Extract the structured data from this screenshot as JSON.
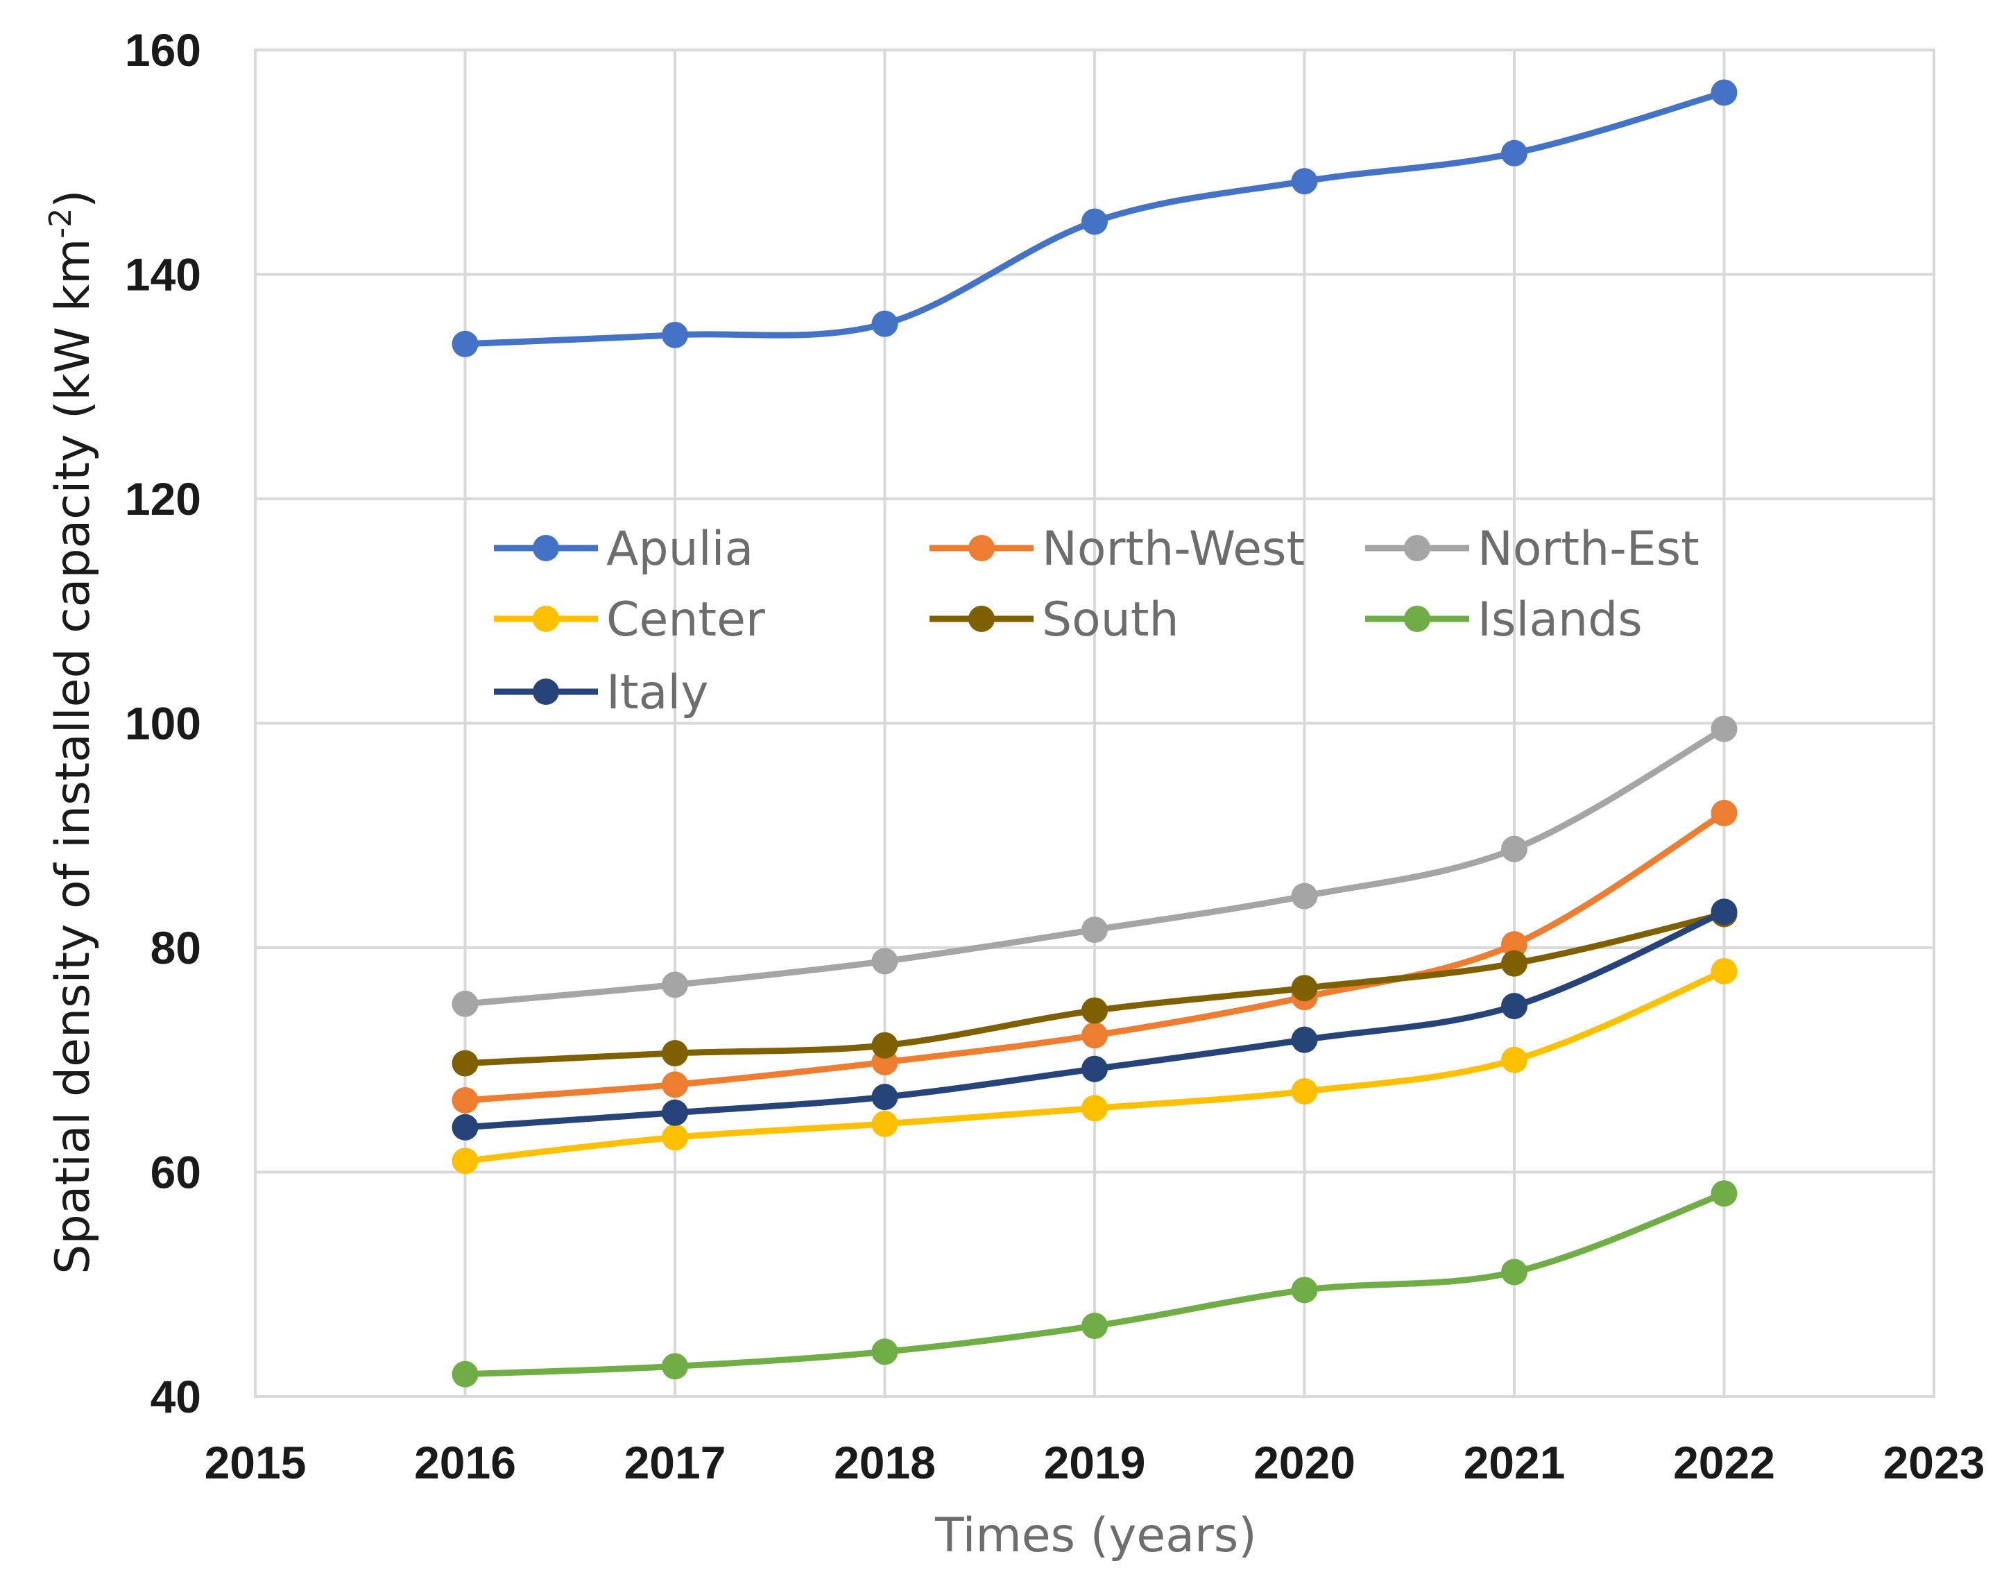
{
  "chart_data": {
    "type": "line",
    "title": "",
    "xlabel": "Times (years)",
    "ylabel": "Spatial density of installed capacity (kW km",
    "ylabel_sup": "-2",
    "ylabel_close": ")",
    "xlim": [
      2015,
      2023
    ],
    "ylim": [
      40,
      160
    ],
    "x_ticks": [
      "2015",
      "2016",
      "2017",
      "2018",
      "2019",
      "2020",
      "2021",
      "2022",
      "2023"
    ],
    "y_ticks": [
      "40",
      "60",
      "80",
      "100",
      "120",
      "140",
      "160"
    ],
    "grid": true,
    "legend_position": "center-left, inside plot",
    "x": [
      2016,
      2017,
      2018,
      2019,
      2020,
      2021,
      2022
    ],
    "series": [
      {
        "name": "Apulia",
        "color": "#4472C4",
        "values": [
          133.8,
          134.6,
          135.6,
          144.7,
          148.3,
          150.8,
          156.2
        ]
      },
      {
        "name": "North-West",
        "color": "#ED7D31",
        "values": [
          66.4,
          67.8,
          69.8,
          72.2,
          75.6,
          80.3,
          92.0
        ]
      },
      {
        "name": "North-Est",
        "color": "#A5A5A5",
        "values": [
          75.0,
          76.7,
          78.8,
          81.6,
          84.6,
          88.8,
          99.5
        ]
      },
      {
        "name": "Center",
        "color": "#FFC000",
        "values": [
          61.0,
          63.1,
          64.3,
          65.7,
          67.2,
          70.0,
          77.9
        ]
      },
      {
        "name": "South",
        "color": "#7F6000",
        "values": [
          69.7,
          70.6,
          71.3,
          74.4,
          76.4,
          78.6,
          83.0
        ]
      },
      {
        "name": "Islands",
        "color": "#70AD47",
        "values": [
          42.0,
          42.7,
          44.0,
          46.3,
          49.5,
          51.1,
          58.1
        ]
      },
      {
        "name": "Italy",
        "color": "#264478",
        "values": [
          64.0,
          65.3,
          66.7,
          69.2,
          71.8,
          74.8,
          83.2
        ]
      }
    ]
  }
}
